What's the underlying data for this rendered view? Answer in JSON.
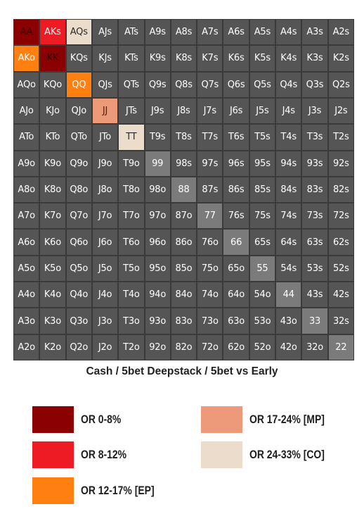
{
  "chart_data": {
    "type": "heatmap",
    "title": "Cash / 5bet Deepstack / 5bet vs Early",
    "ranks": [
      "A",
      "K",
      "Q",
      "J",
      "T",
      "9",
      "8",
      "7",
      "6",
      "5",
      "4",
      "3",
      "2"
    ],
    "cells": [
      [
        "AA",
        "AKs",
        "AQs",
        "AJs",
        "ATs",
        "A9s",
        "A8s",
        "A7s",
        "A6s",
        "A5s",
        "A4s",
        "A3s",
        "A2s"
      ],
      [
        "AKo",
        "KK",
        "KQs",
        "KJs",
        "KTs",
        "K9s",
        "K8s",
        "K7s",
        "K6s",
        "K5s",
        "K4s",
        "K3s",
        "K2s"
      ],
      [
        "AQo",
        "KQo",
        "QQ",
        "QJs",
        "QTs",
        "Q9s",
        "Q8s",
        "Q7s",
        "Q6s",
        "Q5s",
        "Q4s",
        "Q3s",
        "Q2s"
      ],
      [
        "AJo",
        "KJo",
        "QJo",
        "JJ",
        "JTs",
        "J9s",
        "J8s",
        "J7s",
        "J6s",
        "J5s",
        "J4s",
        "J3s",
        "J2s"
      ],
      [
        "ATo",
        "KTo",
        "QTo",
        "JTo",
        "TT",
        "T9s",
        "T8s",
        "T7s",
        "T6s",
        "T5s",
        "T4s",
        "T3s",
        "T2s"
      ],
      [
        "A9o",
        "K9o",
        "Q9o",
        "J9o",
        "T9o",
        "99",
        "98s",
        "97s",
        "96s",
        "95s",
        "94s",
        "93s",
        "92s"
      ],
      [
        "A8o",
        "K8o",
        "Q8o",
        "J8o",
        "T8o",
        "98o",
        "88",
        "87s",
        "86s",
        "85s",
        "84s",
        "83s",
        "82s"
      ],
      [
        "A7o",
        "K7o",
        "Q7o",
        "J7o",
        "T7o",
        "97o",
        "87o",
        "77",
        "76s",
        "75s",
        "74s",
        "73s",
        "72s"
      ],
      [
        "A6o",
        "K6o",
        "Q6o",
        "J6o",
        "T6o",
        "96o",
        "86o",
        "76o",
        "66",
        "65s",
        "64s",
        "63s",
        "62s"
      ],
      [
        "A5o",
        "K5o",
        "Q5o",
        "J5o",
        "T5o",
        "95o",
        "85o",
        "75o",
        "65o",
        "55",
        "54s",
        "53s",
        "52s"
      ],
      [
        "A4o",
        "K4o",
        "Q4o",
        "J4o",
        "T4o",
        "94o",
        "84o",
        "74o",
        "64o",
        "54o",
        "44",
        "43s",
        "42s"
      ],
      [
        "A3o",
        "K3o",
        "Q3o",
        "J3o",
        "T3o",
        "93o",
        "83o",
        "73o",
        "63o",
        "53o",
        "43o",
        "33",
        "32s"
      ],
      [
        "A2o",
        "K2o",
        "Q2o",
        "J2o",
        "T2o",
        "92o",
        "82o",
        "72o",
        "62o",
        "52o",
        "42o",
        "32o",
        "22"
      ]
    ],
    "categories": [
      {
        "key": "or_0_8",
        "label": "OR 0-8%",
        "color": "#8b0000"
      },
      {
        "key": "or_8_12",
        "label": "OR 8-12%",
        "color": "#ed1c24"
      },
      {
        "key": "or_12_17",
        "label": "OR 12-17% [EP]",
        "color": "#ff7f11"
      },
      {
        "key": "or_17_24",
        "label": "OR 17-24% [MP]",
        "color": "#ec9a7a"
      },
      {
        "key": "or_24_33",
        "label": "OR 24-33% [CO]",
        "color": "#ecdccb"
      }
    ],
    "highlighted_hands": {
      "AA": "or_0_8",
      "KK": "or_0_8",
      "AKs": "or_8_12",
      "AKo": "or_12_17",
      "QQ": "or_12_17",
      "JJ": "or_17_24",
      "AQs": "or_24_33",
      "TT": "or_24_33"
    },
    "base_colors": {
      "default": "#555555",
      "pair": "#7b7b7b"
    }
  }
}
